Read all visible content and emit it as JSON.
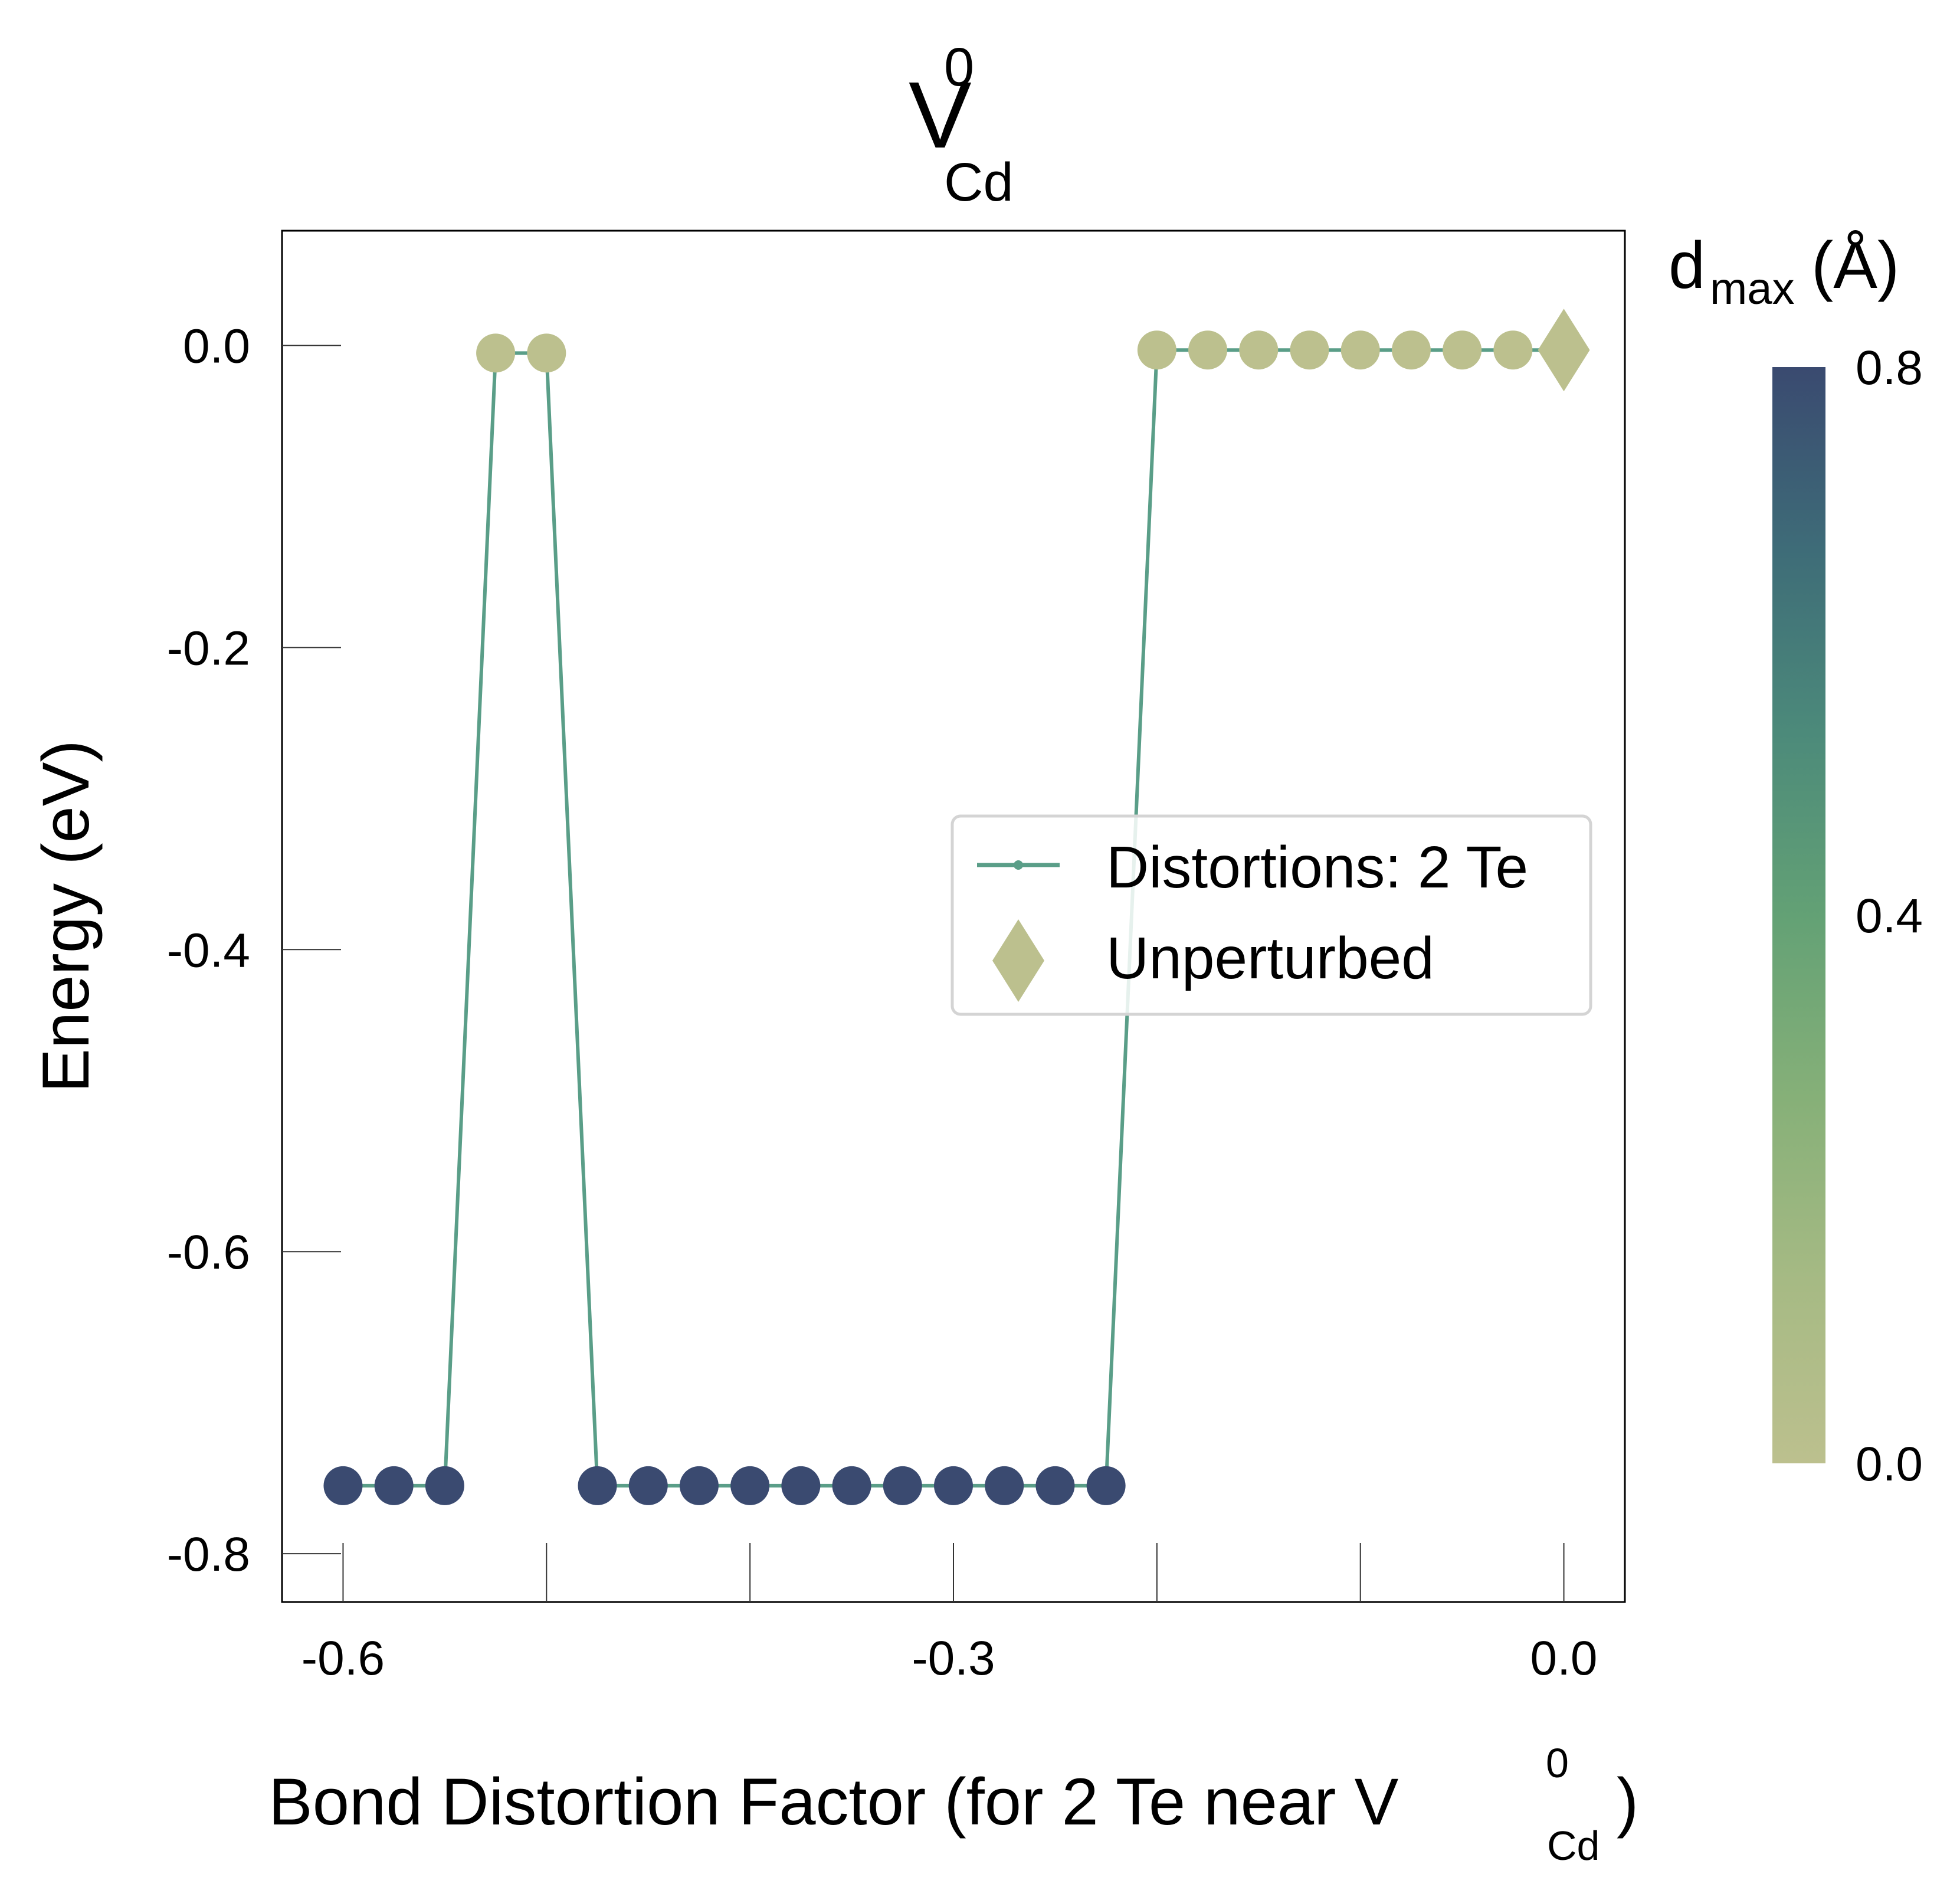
{
  "chart_data": {
    "type": "scatter",
    "title": {
      "base": "V",
      "sup": "0",
      "sub": "Cd"
    },
    "xlabel": {
      "main": "Bond Distortion Factor (for 2 Te near V",
      "sup": "0",
      "sub": "Cd",
      "close": ")"
    },
    "ylabel": "Energy (eV)",
    "xlim": [
      -0.63,
      0.03
    ],
    "ylim": [
      -0.832,
      0.076
    ],
    "xticks": [
      -0.6,
      -0.5,
      -0.4,
      -0.3,
      -0.2,
      -0.1,
      0.0
    ],
    "xtick_labels": [
      {
        "value": -0.6,
        "label": "-0.6"
      },
      {
        "value": -0.3,
        "label": "-0.3"
      },
      {
        "value": 0.0,
        "label": "0.0"
      }
    ],
    "yticks": [
      {
        "value": 0.0,
        "label": "0.0"
      },
      {
        "value": -0.2,
        "label": "-0.2"
      },
      {
        "value": -0.4,
        "label": "-0.4"
      },
      {
        "value": -0.6,
        "label": "-0.6"
      },
      {
        "value": -0.8,
        "label": "-0.8"
      }
    ],
    "grid": false,
    "legend_position": "center-right",
    "series": [
      {
        "name": "Distortions: 2 Te",
        "color": "#5a9e88",
        "x": [
          -0.6,
          -0.575,
          -0.55,
          -0.525,
          -0.5,
          -0.475,
          -0.45,
          -0.425,
          -0.4,
          -0.375,
          -0.35,
          -0.325,
          -0.3,
          -0.275,
          -0.25,
          -0.225,
          -0.2,
          -0.175,
          -0.15,
          -0.125,
          -0.1,
          -0.075,
          -0.05,
          -0.025
        ],
        "y": [
          -0.755,
          -0.755,
          -0.755,
          -0.005,
          -0.005,
          -0.755,
          -0.755,
          -0.755,
          -0.755,
          -0.755,
          -0.755,
          -0.755,
          -0.755,
          -0.755,
          -0.755,
          -0.755,
          -0.003,
          -0.003,
          -0.003,
          -0.003,
          -0.003,
          -0.003,
          -0.003,
          -0.003
        ],
        "dmax": [
          0.8,
          0.8,
          0.8,
          0.0,
          0.0,
          0.8,
          0.8,
          0.8,
          0.8,
          0.8,
          0.8,
          0.8,
          0.8,
          0.8,
          0.8,
          0.8,
          0.0,
          0.0,
          0.0,
          0.0,
          0.0,
          0.0,
          0.0,
          0.0
        ]
      },
      {
        "name": "Unperturbed",
        "marker": "diamond",
        "color": "#bcc08e",
        "x": [
          0.0
        ],
        "y": [
          -0.003
        ],
        "dmax": [
          0.0
        ]
      }
    ],
    "colorbar": {
      "label": {
        "main": "d",
        "sub": "max",
        "unit": " (Å)"
      },
      "range": [
        0.0,
        0.8
      ],
      "ticks": [
        {
          "value": 0.8,
          "label": "0.8"
        },
        {
          "value": 0.4,
          "label": "0.4"
        },
        {
          "value": 0.0,
          "label": "0.0"
        }
      ],
      "colors": [
        "#bcc08e",
        "#a6ba84",
        "#86b078",
        "#63a175",
        "#4c8a7a",
        "#3e6c78",
        "#3a4a70"
      ]
    }
  }
}
